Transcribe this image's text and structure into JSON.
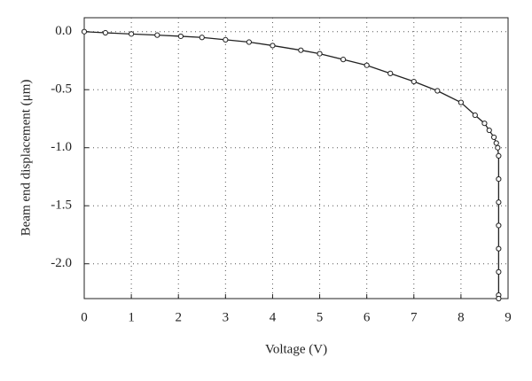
{
  "chart_data": {
    "type": "line",
    "x_label": "Voltage (V)",
    "y_label": "Beam end displacement (μm)",
    "x": [
      0,
      0.45,
      1,
      1.55,
      2.05,
      2.5,
      3,
      3.5,
      4,
      4.6,
      5,
      5.5,
      6,
      6.5,
      7,
      7.5,
      8,
      8.3,
      8.5,
      8.6,
      8.7,
      8.75,
      8.78,
      8.8,
      8.8,
      8.8,
      8.8,
      8.8,
      8.8,
      8.8,
      8.8
    ],
    "series": [
      {
        "color": "#222222",
        "values": [
          0,
          -0.01,
          -0.02,
          -0.03,
          -0.04,
          -0.05,
          -0.07,
          -0.09,
          -0.12,
          -0.16,
          -0.19,
          -0.24,
          -0.29,
          -0.36,
          -0.43,
          -0.51,
          -0.61,
          -0.72,
          -0.79,
          -0.85,
          -0.91,
          -0.96,
          -1.0,
          -1.07,
          -1.27,
          -1.47,
          -1.67,
          -1.87,
          -2.07,
          -2.27,
          -2.3
        ]
      }
    ],
    "xlim": [
      0,
      9
    ],
    "xticks": [
      0,
      1,
      2,
      3,
      4,
      5,
      6,
      7,
      8,
      9
    ],
    "ylim": [
      -2.3,
      0.12
    ],
    "yticks": [
      {
        "value": 0,
        "label": "0.0"
      },
      -0.5,
      {
        "value": -1,
        "label": "-1.0"
      },
      -1.5,
      {
        "value": -2,
        "label": "-2.0"
      }
    ],
    "grid": true
  }
}
